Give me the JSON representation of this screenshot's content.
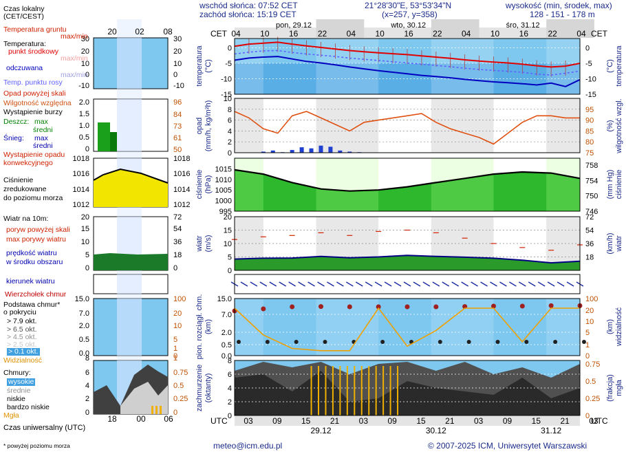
{
  "header": {
    "sunrise": "wschód słońca: 07:52 CET",
    "sunset": "zachód słońca: 15:19 CET",
    "coords": "21°28'30\"E, 53°53'34\"N",
    "grid": "(x=257, y=358)",
    "alt_title": "wysokość (min, środek, max)",
    "alt_values": "128 - 151 - 178 m"
  },
  "tz_top": "CET",
  "tz_bottom": "UTC",
  "days_top": [
    "pon, 29.12",
    "wto, 30.12",
    "śro, 31.12"
  ],
  "hours_top": [
    "04",
    "10",
    "16",
    "22",
    "04",
    "10",
    "16",
    "22",
    "04",
    "10",
    "16",
    "22",
    "04"
  ],
  "hours_bottom": [
    "03",
    "09",
    "15",
    "21",
    "03",
    "09",
    "15",
    "21",
    "03",
    "09",
    "15",
    "21",
    "03"
  ],
  "days_bottom": [
    "29.12",
    "30.12",
    "31.12"
  ],
  "legend": {
    "time_local": "Czas lokalny",
    "time_local2": "(CET/CEST)",
    "legend_hours_top": [
      "20",
      "02",
      "08"
    ],
    "legend_hours_bottom": [
      "18",
      "00",
      "06"
    ],
    "ground_temp": "Temperatura gruntu",
    "ground_temp_mm": "max/min",
    "temperature": "Temperatura:",
    "mid_point": "punkt środkowy",
    "mid_maxmin": "max/min",
    "feels": "odczuwana",
    "feels_maxmin": "max/min",
    "dew": "Temp. punktu rosy",
    "precip_above": "Opad powyżej skali",
    "humidity": "Wilgotność względna",
    "storm": "Wystąpienie burzy",
    "rain": "Deszcz:",
    "rain_max": "max",
    "rain_mean": "średni",
    "snow": "Śnieg:",
    "snow_max": "max",
    "snow_mean": "średni",
    "conv1": "Wystąpienie opadu",
    "conv2": "konwekcyjnego",
    "press1": "Ciśnienie",
    "press2": "zredukowane",
    "press3": "do poziomu morza",
    "wind_at": "Wiatr na 10m:",
    "gust_above": "poryw powyżej skali",
    "gust_max": "max porywy wiatru",
    "wind_speed1": "prędkość wiatru",
    "wind_speed2": "w środku obszaru",
    "wind_dir": "kierunek wiatru",
    "cloud_top": "Wierzchołek chmur",
    "cloud_base1": "Podstawa chmur*",
    "cloud_base2": "o pokryciu",
    "okt": [
      "> 7.9 okt.",
      "> 6.5 okt.",
      "> 4.5 okt.",
      "> 2.5 okt.",
      "> 0.1 okt."
    ],
    "visibility": "Widzialność",
    "clouds": "Chmury:",
    "cl_high": "wysokie",
    "cl_mid": "średnie",
    "cl_low": "niskie",
    "cl_vlow": "bardzo niskie",
    "fog": "Mgła",
    "utc": "Czas uniwersalny (UTC)",
    "footnote": "* powyżej poziomu morza"
  },
  "units": {
    "temp_l": "temperatura",
    "temp_l2": "(°C)",
    "temp_r": "temperatura",
    "temp_r2": "(°C)",
    "precip_l": "opad",
    "precip_l2": "(mm/h, kg/m²h)",
    "hum_r": "wilgotność wzgl.",
    "hum_r2": "(%)",
    "press_l": "ciśnienie",
    "press_l2": "(hPa)",
    "press_r": "ciśnienie",
    "press_r2": "(mm Hg)",
    "wind_l": "wiatr",
    "wind_l2": "(m/s)",
    "wind_r": "wiatr",
    "wind_r2": "(km/h)",
    "cloud_l": "pion. rozciągł. chm.",
    "cloud_l2": "(km)",
    "vis_r": "widzialność",
    "vis_r2": "(km)",
    "cov_l": "zachmurzenie",
    "cov_l2": "(oktanty)",
    "fog_r": "mgła",
    "fog_r2": "(frakcja)"
  },
  "footer": {
    "email": "meteo@icm.edu.pl",
    "copyright": "© 2007-2025 ICM, Uniwersytet Warszawski"
  },
  "colors": {
    "temperature": "#e00000",
    "feels": "#0000c0",
    "dew": "#6060ff",
    "humidity": "#d05010",
    "pressure_fill": "#22b022",
    "wind_fill": "#2a9a2a",
    "sky": "#7ec8f0",
    "visibility": "#f0a000",
    "cloud_dark": "#303030",
    "fog": "#f0b000"
  },
  "chart_data": [
    {
      "type": "line",
      "name": "temperature",
      "ylim": [
        -15,
        3
      ],
      "ticks_left": [
        0,
        -5,
        -10,
        -15
      ],
      "ticks_right": [
        0,
        -5,
        -10,
        -15
      ],
      "x_hours": [
        0,
        3,
        6,
        9,
        12,
        15,
        18,
        21,
        24,
        27,
        30,
        33,
        36,
        39,
        42,
        45,
        48,
        51,
        54,
        57,
        60,
        63,
        66,
        69,
        72
      ],
      "series": [
        {
          "values": [
            0.5,
            1.2,
            1.5,
            1.8,
            1.2,
            0.6,
            0.1,
            -0.4,
            -0.9,
            -1.3,
            -1.6,
            -1.9,
            -2.2,
            -2.6,
            -3.0,
            -3.4,
            -3.9,
            -4.3,
            -4.6,
            -4.9,
            -5.3,
            -5.8,
            -6.2,
            -5.9,
            -5.0
          ]
        },
        {
          "values": [
            -4.0,
            -3.3,
            -3.0,
            -2.8,
            -3.6,
            -4.4,
            -4.9,
            -5.5,
            -6.2,
            -6.8,
            -7.4,
            -7.9,
            -8.4,
            -8.9,
            -9.3,
            -9.7,
            -10.2,
            -10.6,
            -11.0,
            -11.3,
            -11.6,
            -12.0,
            -11.4,
            -12.5,
            -10.3
          ]
        },
        {
          "values": [
            -2.0,
            -1.4,
            -1.0,
            -0.9,
            -1.5,
            -2.0,
            -2.4,
            -2.8,
            -3.3,
            -3.7,
            -4.1,
            -4.5,
            -4.9,
            -5.3,
            -5.7,
            -6.1,
            -6.6,
            -7.0,
            -7.3,
            -7.6,
            -7.9,
            -8.5,
            -8.8,
            -8.2,
            -7.5
          ]
        }
      ]
    },
    {
      "type": "bar",
      "name": "precipitation",
      "ylim_left": [
        0,
        10
      ],
      "ticks_left": [
        0,
        2,
        4,
        6,
        8,
        10
      ],
      "ylim_right": [
        75,
        100
      ],
      "ticks_right": [
        75,
        80,
        85,
        90,
        95
      ],
      "humidity_x": [
        0,
        3,
        6,
        9,
        12,
        15,
        18,
        21,
        24,
        27,
        30,
        33,
        36,
        39,
        42,
        45,
        48,
        51,
        54,
        57,
        60,
        63,
        66,
        69,
        72
      ],
      "humidity": [
        94,
        91,
        86,
        84,
        92,
        94,
        91,
        88,
        85,
        89,
        90,
        91,
        92,
        93,
        89,
        86,
        84,
        82,
        79,
        84,
        89,
        92,
        92,
        91,
        91
      ],
      "precip_x": [
        6,
        8,
        10,
        12,
        14,
        16,
        18,
        20,
        22,
        24,
        26,
        28
      ],
      "precip": [
        0.2,
        0.4,
        0.1,
        0.5,
        1.0,
        0.8,
        1.3,
        1.1,
        0.4,
        0.2,
        0.1,
        0.0
      ]
    },
    {
      "type": "area",
      "name": "pressure",
      "ylim": [
        995,
        1020
      ],
      "ticks_left": [
        995,
        1000,
        1005,
        1010,
        1015
      ],
      "ticks_right": [
        746,
        750,
        754,
        758
      ],
      "x_hours": [
        0,
        6,
        12,
        18,
        24,
        30,
        36,
        42,
        48,
        54,
        60,
        66,
        72
      ],
      "values": [
        1014.5,
        1012.5,
        1008.5,
        1005.5,
        1004.5,
        1005,
        1006.5,
        1008.5,
        1010.5,
        1012.5,
        1013.5,
        1013,
        1010.5
      ]
    },
    {
      "type": "area",
      "name": "wind",
      "ylim": [
        0,
        20
      ],
      "ticks_left": [
        0,
        5,
        10,
        15,
        20
      ],
      "ticks_right": [
        18,
        36,
        54,
        72
      ],
      "x_hours": [
        0,
        6,
        12,
        18,
        24,
        30,
        36,
        42,
        48,
        54,
        60,
        66,
        72
      ],
      "speed": [
        4.2,
        4.5,
        4.6,
        5.2,
        4.7,
        5.0,
        5.6,
        5.2,
        4.9,
        4.5,
        3.8,
        2.8,
        3.4
      ],
      "gust": [
        11.5,
        12.5,
        13,
        14,
        13,
        14.5,
        15,
        14,
        12,
        10,
        8.5,
        7.5,
        9.5
      ]
    },
    {
      "type": "scatter",
      "name": "clouds",
      "ylim": [
        0,
        15
      ],
      "ticks_left": [
        0.0,
        0.5,
        2.0,
        7.0,
        15.0
      ],
      "ticks_right": [
        0,
        1,
        5,
        10,
        20,
        100
      ],
      "x_hours": [
        0,
        6,
        12,
        18,
        24,
        30,
        36,
        42,
        48,
        54,
        60,
        66,
        72
      ],
      "cloud_top": [
        9.0,
        10.5,
        12.0,
        12.2,
        12.0,
        12.0,
        12.0,
        12.0,
        12.2,
        12.5,
        12.5,
        12.8,
        12.8
      ],
      "visibility_km": [
        20,
        8,
        2,
        1,
        1,
        20,
        3,
        10,
        20,
        20,
        5,
        20,
        20
      ]
    },
    {
      "type": "area",
      "name": "cloud_cover",
      "ylim": [
        0,
        8
      ],
      "ticks_left": [
        0,
        2,
        4,
        6,
        8
      ],
      "ticks_right": [
        0,
        0.25,
        0.5,
        0.75
      ],
      "x_hours": [
        0,
        6,
        12,
        18,
        24,
        30,
        36,
        42,
        48,
        54,
        60,
        66,
        72
      ],
      "high": [
        6.5,
        7.8,
        7.0,
        7.8,
        6.0,
        7.5,
        7.8,
        6.5,
        7.8,
        6.0,
        7.0,
        5.5,
        7.5
      ],
      "low": [
        5.5,
        6.0,
        3.5,
        6.5,
        2.0,
        2.5,
        5.0,
        4.0,
        3.5,
        3.0,
        5.5,
        2.5,
        4.0
      ]
    }
  ]
}
